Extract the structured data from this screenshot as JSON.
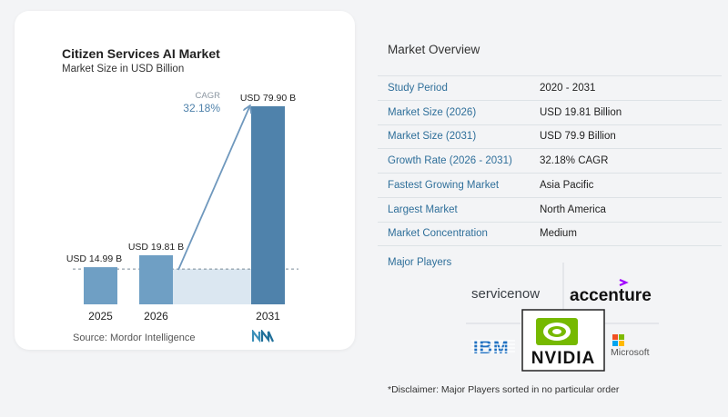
{
  "chart_data": {
    "type": "bar",
    "title": "Citizen Services AI Market",
    "subtitle": "Market Size in USD Billion",
    "categories": [
      "2025",
      "2026",
      "2031"
    ],
    "values": [
      14.99,
      19.81,
      79.9
    ],
    "value_labels": [
      "USD 14.99 B",
      "USD 19.81 B",
      "USD 79.90 B"
    ],
    "cagr_label": "CAGR",
    "cagr_value": "32.18%",
    "ylim": [
      0,
      85
    ],
    "colors": {
      "bar_light": "#6f9fc4",
      "bar_dark": "#4f82ab",
      "shade": "#dbe7f1",
      "arrow": "#6f98bd"
    }
  },
  "source": "Source:  Mordor Intelligence",
  "overview": {
    "title": "Market Overview",
    "rows": [
      {
        "label": "Study Period",
        "value": "2020 - 2031"
      },
      {
        "label": "Market Size (2026)",
        "value": "USD 19.81 Billion"
      },
      {
        "label": "Market Size (2031)",
        "value": "USD 79.9 Billion"
      },
      {
        "label": "Growth Rate (2026 - 2031)",
        "value": "32.18% CAGR"
      },
      {
        "label": "Fastest Growing Market",
        "value": "Asia Pacific"
      },
      {
        "label": "Largest Market",
        "value": "North America"
      },
      {
        "label": "Market Concentration",
        "value": "Medium"
      }
    ]
  },
  "players": {
    "title": "Major Players",
    "logos": [
      "servicenow",
      "accenture",
      "IBM",
      "NVIDIA",
      "Microsoft"
    ]
  },
  "disclaimer": "*Disclaimer: Major Players sorted in no particular order"
}
